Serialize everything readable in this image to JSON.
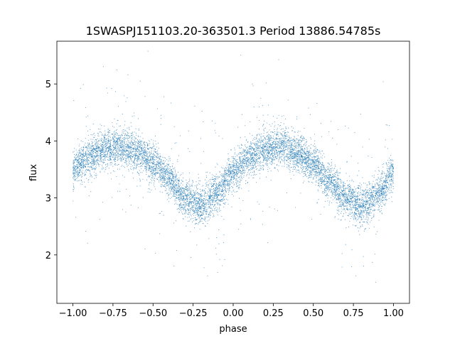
{
  "chart_data": {
    "type": "scatter",
    "title": "1SWASPJ151103.20-363501.3 Period 13886.54785s",
    "xlabel": "phase",
    "ylabel": "flux",
    "xlim": [
      -1.1,
      1.1
    ],
    "ylim": [
      1.15,
      5.75
    ],
    "xticks": [
      -1.0,
      -0.75,
      -0.5,
      -0.25,
      0.0,
      0.25,
      0.5,
      0.75,
      1.0
    ],
    "xtick_labels": [
      "−1.00",
      "−0.75",
      "−0.50",
      "−0.25",
      "0.00",
      "0.25",
      "0.50",
      "0.75",
      "1.00"
    ],
    "yticks": [
      2,
      3,
      4,
      5
    ],
    "ytick_labels": [
      "2",
      "3",
      "4",
      "5"
    ],
    "grid": false,
    "marker_color": "#1f77b4",
    "series": [
      {
        "name": "",
        "color": "#1f77b4",
        "trend": {
          "phase": [
            -1.0,
            -0.9,
            -0.8,
            -0.7,
            -0.6,
            -0.5,
            -0.4,
            -0.3,
            -0.2,
            -0.1,
            0.0,
            0.1,
            0.2,
            0.3,
            0.4,
            0.5,
            0.6,
            0.7,
            0.8,
            0.9,
            1.0
          ],
          "flux": [
            3.5,
            3.7,
            3.85,
            3.9,
            3.8,
            3.6,
            3.35,
            3.0,
            2.85,
            3.1,
            3.45,
            3.7,
            3.85,
            3.9,
            3.8,
            3.6,
            3.3,
            3.0,
            2.85,
            3.05,
            3.45
          ]
        },
        "scatter_width": 0.45
      }
    ]
  }
}
